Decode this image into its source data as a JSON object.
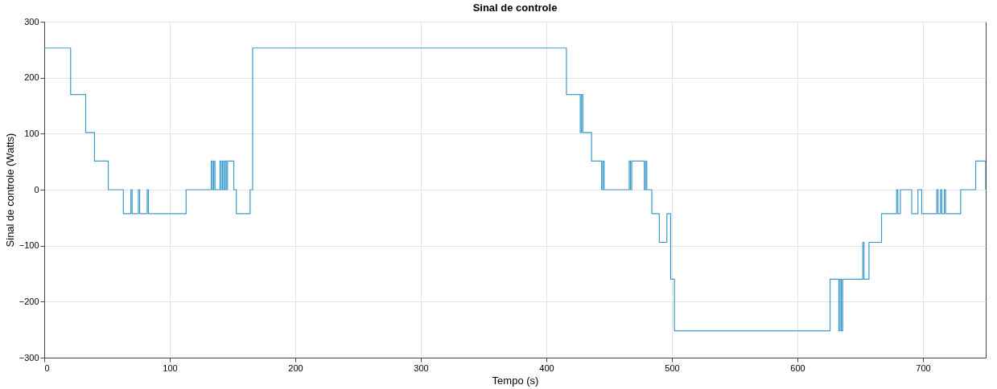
{
  "chart_data": {
    "type": "step",
    "title": "Sinal de controle",
    "xlabel": "Tempo (s)",
    "ylabel": "Sinal de controle (Watts)",
    "x": [
      0,
      21,
      33,
      40,
      51,
      63,
      69,
      70,
      75,
      76,
      82,
      83,
      113,
      133,
      134,
      135,
      136,
      140,
      141,
      142,
      143,
      144,
      145,
      146,
      151,
      153,
      164,
      166,
      416,
      427,
      428,
      429,
      436,
      444,
      445,
      446,
      466,
      467,
      468,
      478,
      479,
      480,
      484,
      490,
      496,
      499,
      502,
      626,
      633,
      634,
      635,
      636,
      652,
      653,
      657,
      667,
      679,
      680,
      682,
      691,
      696,
      699,
      711,
      712,
      714,
      715,
      717,
      718,
      730,
      742,
      750
    ],
    "series": [
      {
        "color": "#3d9bcc",
        "values": [
          253,
          170,
          102,
          51,
          0,
          -43,
          0,
          -43,
          0,
          -43,
          0,
          -43,
          0,
          51,
          0,
          51,
          0,
          51,
          0,
          51,
          0,
          51,
          0,
          51,
          0,
          -43,
          0,
          253,
          170,
          102,
          170,
          102,
          51,
          0,
          51,
          0,
          51,
          0,
          51,
          0,
          51,
          0,
          -43,
          -94,
          -43,
          -160,
          -252,
          -160,
          -252,
          -160,
          -252,
          -160,
          -94,
          -160,
          -94,
          -43,
          0,
          -43,
          0,
          -43,
          0,
          -43,
          0,
          -43,
          0,
          -43,
          0,
          -43,
          0,
          51,
          0
        ]
      }
    ],
    "xlim": [
      0,
      750
    ],
    "xticks": [
      0,
      100,
      200,
      300,
      400,
      500,
      600,
      700
    ],
    "ylim": [
      -300,
      300
    ],
    "yticks": [
      -300,
      -200,
      -100,
      0,
      100,
      200,
      300
    ],
    "grid": true,
    "line_style": "solid"
  }
}
